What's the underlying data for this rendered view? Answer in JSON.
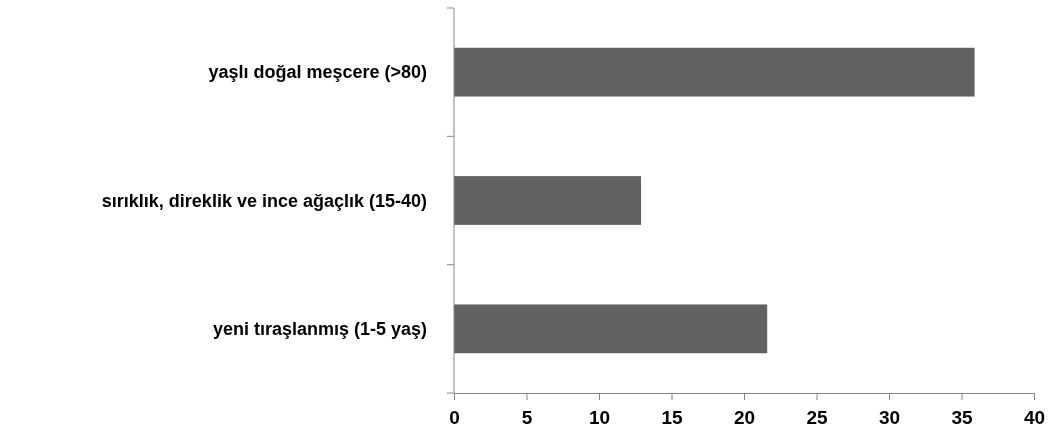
{
  "chart_data": {
    "type": "bar",
    "orientation": "horizontal",
    "categories": [
      "yaşlı doğal meşcere (>80)",
      "sırıklık, direklik ve ince ağaçlık (15-40)",
      "yeni tıraşlanmış (1-5 yaş)"
    ],
    "values": [
      35.9,
      12.9,
      21.6
    ],
    "color": "#616161",
    "xlim": [
      0,
      40
    ],
    "xticks": [
      0,
      5,
      10,
      15,
      20,
      25,
      30,
      35,
      40
    ],
    "grid": false
  }
}
